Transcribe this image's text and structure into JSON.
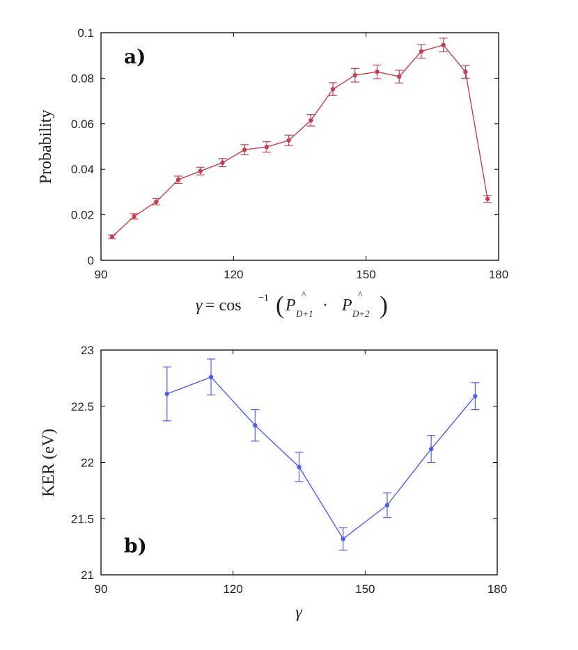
{
  "chart_data": [
    {
      "type": "line",
      "panel_label": "a)",
      "title": "",
      "xlabel_parts": {
        "gamma": "γ",
        "eq": " = cos",
        "sup": "−1",
        "lparen": "(",
        "P": "P",
        "hat": "^",
        "sub1": "D+1",
        "dot": " · ",
        "sub2": "D+2",
        "rparen": ")"
      },
      "ylabel": "Probability",
      "xlim": [
        90,
        180
      ],
      "ylim": [
        0,
        0.1
      ],
      "xticks": [
        90,
        120,
        150,
        180
      ],
      "xtick_labels": [
        "90",
        "120",
        "150",
        "180"
      ],
      "yticks": [
        0,
        0.02,
        0.04,
        0.06,
        0.08,
        0.1
      ],
      "ytick_labels": [
        "0",
        "0.02",
        "0.04",
        "0.06",
        "0.08",
        "0.1"
      ],
      "grid": false,
      "color": "#c0404f",
      "series": [
        {
          "name": "Probability",
          "x": [
            92.5,
            97.5,
            102.5,
            107.5,
            112.5,
            117.5,
            122.5,
            127.5,
            132.5,
            137.5,
            142.5,
            147.5,
            152.5,
            157.5,
            162.5,
            167.5,
            172.5,
            177.5
          ],
          "y": [
            0.0103,
            0.0193,
            0.0257,
            0.0354,
            0.0392,
            0.0429,
            0.0486,
            0.0498,
            0.0527,
            0.0615,
            0.0752,
            0.0813,
            0.0828,
            0.0807,
            0.0918,
            0.0946,
            0.0828,
            0.027
          ],
          "err": [
            0.0008,
            0.0012,
            0.0014,
            0.0016,
            0.0017,
            0.0018,
            0.0022,
            0.0023,
            0.0023,
            0.0025,
            0.0028,
            0.003,
            0.003,
            0.0028,
            0.003,
            0.003,
            0.0028,
            0.0015
          ]
        }
      ]
    },
    {
      "type": "line",
      "panel_label": "b)",
      "title": "",
      "xlabel": "γ",
      "ylabel": "KER (eV)",
      "xlim": [
        90,
        180
      ],
      "ylim": [
        21,
        23
      ],
      "xticks": [
        90,
        120,
        150,
        180
      ],
      "xtick_labels": [
        "90",
        "120",
        "150",
        "180"
      ],
      "yticks": [
        21,
        21.5,
        22,
        22.5,
        23
      ],
      "ytick_labels": [
        "21",
        "21.5",
        "22",
        "22.5",
        "23"
      ],
      "grid": false,
      "color": "#4f5df0",
      "series": [
        {
          "name": "KER",
          "x": [
            105,
            115,
            125,
            135,
            145,
            155,
            165,
            175
          ],
          "y": [
            22.61,
            22.76,
            22.33,
            21.96,
            21.32,
            21.62,
            22.12,
            22.59
          ],
          "err": [
            0.24,
            0.16,
            0.14,
            0.13,
            0.1,
            0.11,
            0.12,
            0.12
          ]
        }
      ]
    }
  ]
}
